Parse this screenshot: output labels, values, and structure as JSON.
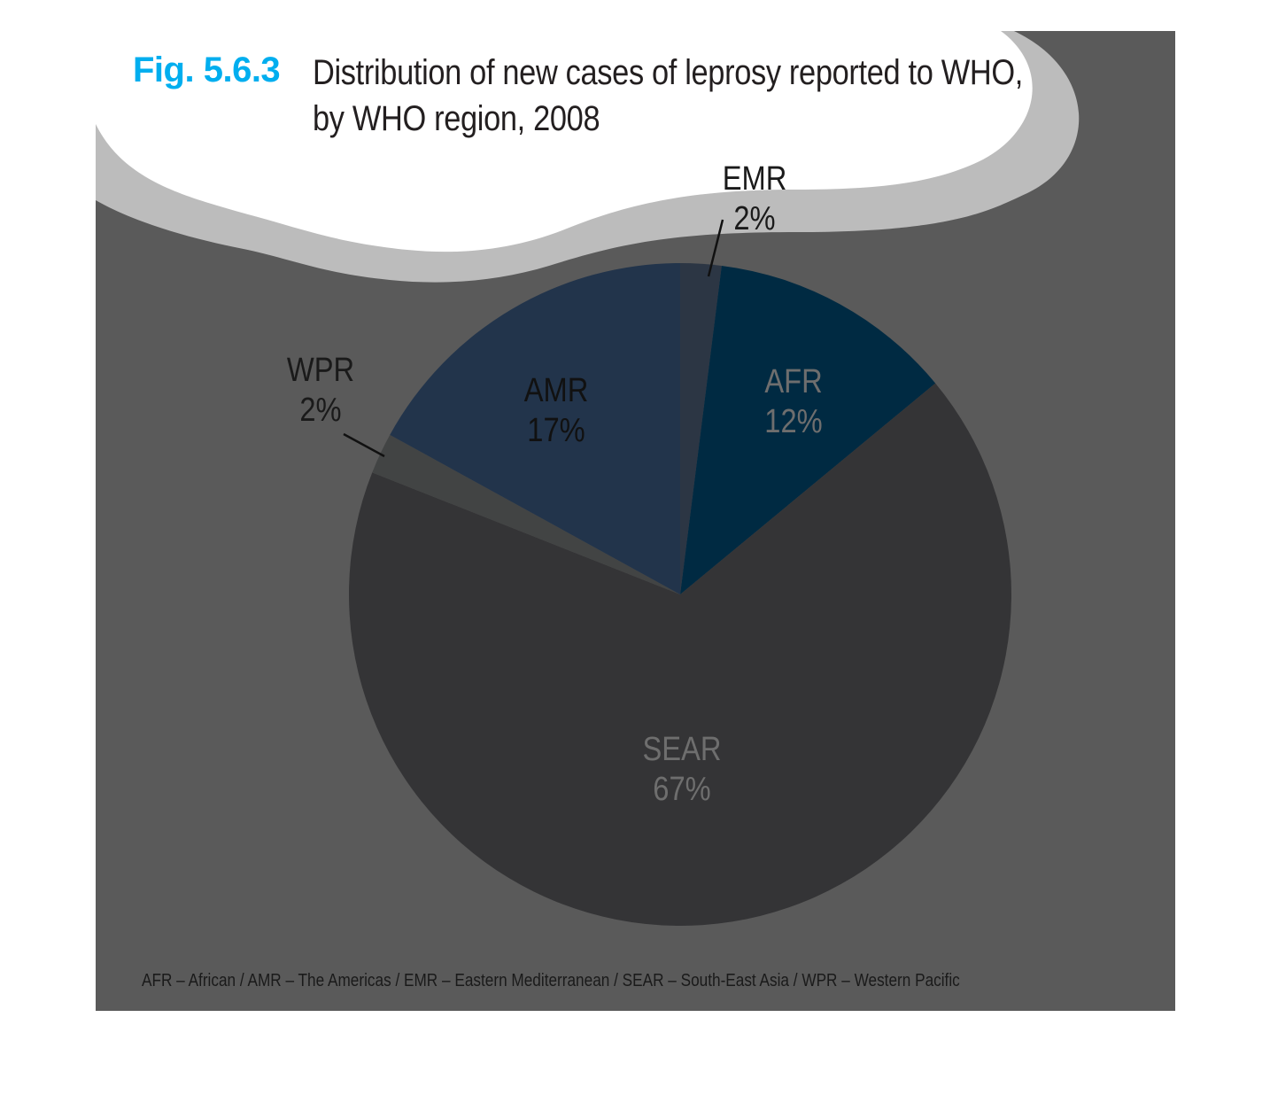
{
  "figure": {
    "number": "Fig. 5.6.3",
    "title_line1": "Distribution of new cases of leprosy reported to WHO,",
    "title_line2": "by WHO region, 2008",
    "number_color": "#00aeef"
  },
  "footnote": "AFR – African / AMR – The Americas / EMR – Eastern Mediterranean / SEAR – South-East Asia / WPR – Western Pacific",
  "colors": {
    "background": "#5a5a5a",
    "cloud_border": "#bcbcbc",
    "cloud_fill": "#ffffff"
  },
  "chart_data": {
    "type": "pie",
    "categories": [
      "EMR",
      "AFR",
      "SEAR",
      "WPR",
      "AMR"
    ],
    "values": [
      2,
      12,
      67,
      2,
      17
    ],
    "value_labels": [
      "2%",
      "12%",
      "67%",
      "2%",
      "17%"
    ],
    "colors": [
      "#2c3644",
      "#002a42",
      "#343436",
      "#424444",
      "#22344b"
    ],
    "label_colors": [
      "#1a1a1a",
      "#6e6e6e",
      "#6e6e6e",
      "#1a1a1a",
      "#111111"
    ],
    "start": "12 o'clock",
    "direction": "clockwise",
    "legend": "none"
  }
}
